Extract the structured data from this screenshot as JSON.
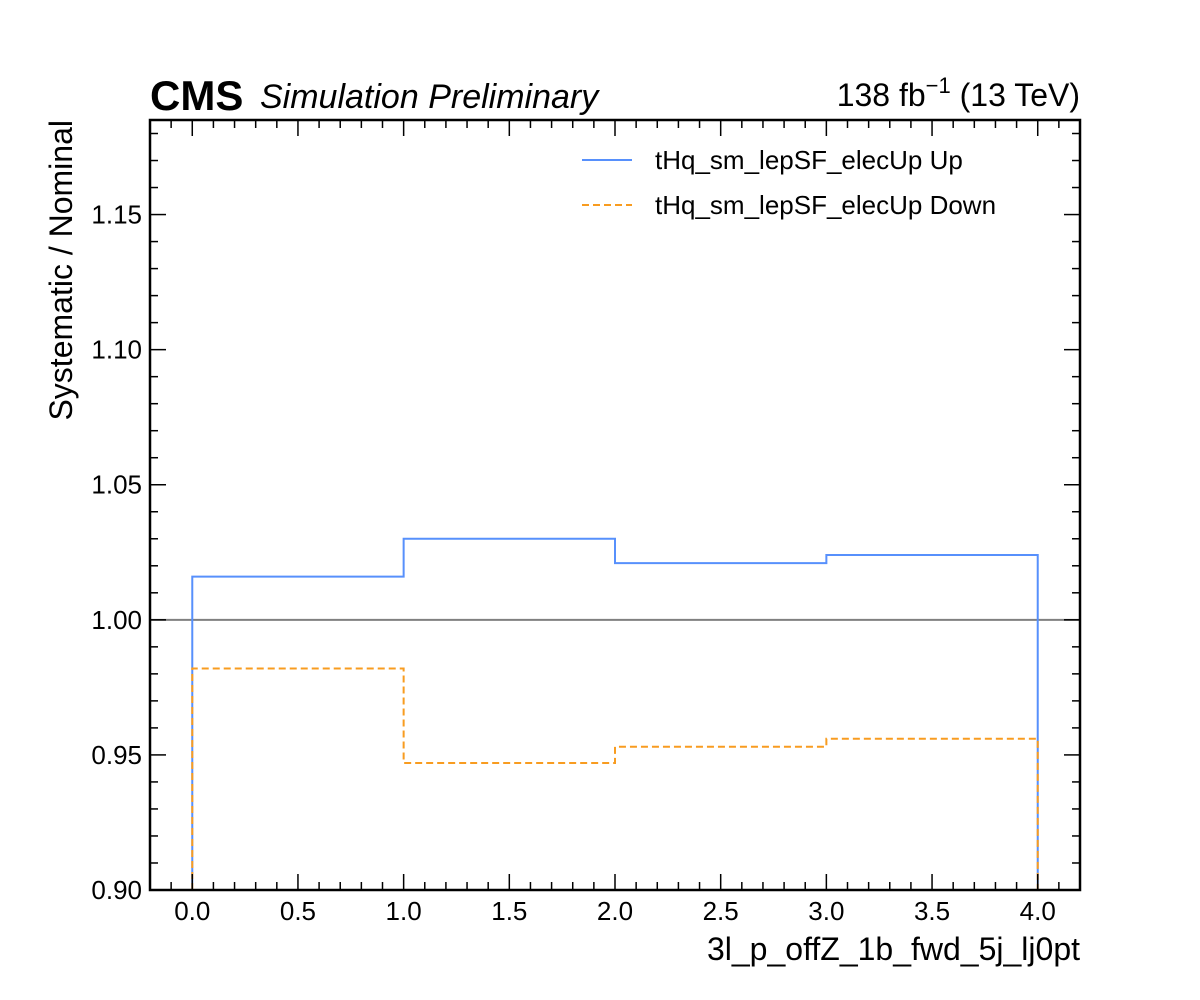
{
  "header": {
    "experiment": "CMS",
    "extra": "Simulation Preliminary",
    "lumi_prefix": "138 fb",
    "lumi_exp": "−1",
    "lumi_suffix": " (13 TeV)"
  },
  "colors": {
    "up": "#5790fc",
    "down": "#f89c20",
    "reference": "#808080"
  },
  "chart_data": {
    "type": "line",
    "drawstyle": "step",
    "xlabel": "3l_p_offZ_1b_fwd_5j_lj0pt",
    "ylabel": "Systematic / Nominal",
    "xlim": [
      -0.2,
      4.2
    ],
    "ylim": [
      0.9,
      1.185
    ],
    "xticks": [
      0.0,
      0.5,
      1.0,
      1.5,
      2.0,
      2.5,
      3.0,
      3.5,
      4.0
    ],
    "xtick_labels": [
      "0.0",
      "0.5",
      "1.0",
      "1.5",
      "2.0",
      "2.5",
      "3.0",
      "3.5",
      "4.0"
    ],
    "yticks": [
      0.9,
      0.95,
      1.0,
      1.05,
      1.1,
      1.15
    ],
    "ytick_labels": [
      "0.90",
      "0.95",
      "1.00",
      "1.05",
      "1.10",
      "1.15"
    ],
    "bin_edges": [
      0,
      1,
      2,
      3,
      4
    ],
    "reference_line": 1.0,
    "grid": false,
    "legend_position": "top-right",
    "series": [
      {
        "name": "tHq_sm_lepSF_elecUp Up",
        "values": [
          1.016,
          1.03,
          1.021,
          1.024
        ],
        "style": "solid",
        "color_key": "up"
      },
      {
        "name": "tHq_sm_lepSF_elecUp Down",
        "values": [
          0.982,
          0.947,
          0.953,
          0.956
        ],
        "style": "dashed",
        "color_key": "down"
      }
    ]
  }
}
